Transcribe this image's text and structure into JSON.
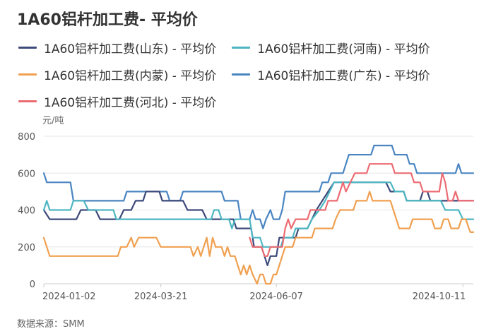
{
  "title": "1A60铝杆加工费- 平均价",
  "unit": "元/吨",
  "source": "数据来源：SMM",
  "chart_data": {
    "type": "line",
    "title": "1A60铝杆加工费- 平均价",
    "ylabel": "元/吨",
    "ylim": [
      0,
      800
    ],
    "yticks": [
      0,
      200,
      400,
      600,
      800
    ],
    "x_tick_labels": [
      "2024-01-02",
      "2024-03-21",
      "2024-06-07",
      "2024-10-11"
    ],
    "x_range": [
      "2024-01-02",
      "2024-10-18"
    ],
    "grid": true,
    "legend_position": "top",
    "series": [
      {
        "name": "1A60铝杆加工费(山东) - 平均价",
        "color": "#3d4a7a",
        "points": [
          [
            "2024-01-02",
            400
          ],
          [
            "2024-01-06",
            350
          ],
          [
            "2024-01-24",
            350
          ],
          [
            "2024-01-27",
            400
          ],
          [
            "2024-02-06",
            400
          ],
          [
            "2024-02-09",
            350
          ],
          [
            "2024-02-22",
            350
          ],
          [
            "2024-02-25",
            400
          ],
          [
            "2024-03-01",
            400
          ],
          [
            "2024-03-04",
            450
          ],
          [
            "2024-03-09",
            450
          ],
          [
            "2024-03-11",
            500
          ],
          [
            "2024-03-20",
            500
          ],
          [
            "2024-03-22",
            450
          ],
          [
            "2024-04-05",
            450
          ],
          [
            "2024-04-08",
            400
          ],
          [
            "2024-04-18",
            400
          ],
          [
            "2024-04-21",
            350
          ],
          [
            "2024-05-09",
            350
          ],
          [
            "2024-05-11",
            300
          ],
          [
            "2024-05-21",
            300
          ],
          [
            "2024-05-23",
            200
          ],
          [
            "2024-05-28",
            200
          ],
          [
            "2024-05-30",
            150
          ],
          [
            "2024-06-01",
            100
          ],
          [
            "2024-06-03",
            150
          ],
          [
            "2024-06-07",
            150
          ],
          [
            "2024-06-09",
            250
          ],
          [
            "2024-06-20",
            250
          ],
          [
            "2024-06-22",
            300
          ],
          [
            "2024-06-28",
            300
          ],
          [
            "2024-07-01",
            350
          ],
          [
            "2024-07-04",
            400
          ],
          [
            "2024-07-08",
            450
          ],
          [
            "2024-07-12",
            500
          ],
          [
            "2024-07-16",
            550
          ],
          [
            "2024-08-20",
            550
          ],
          [
            "2024-08-23",
            500
          ],
          [
            "2024-09-01",
            500
          ],
          [
            "2024-09-03",
            450
          ],
          [
            "2024-09-12",
            450
          ],
          [
            "2024-09-14",
            500
          ],
          [
            "2024-09-17",
            500
          ],
          [
            "2024-09-19",
            450
          ],
          [
            "2024-10-01",
            450
          ],
          [
            "2024-10-03",
            450
          ],
          [
            "2024-10-18",
            450
          ]
        ]
      },
      {
        "name": "1A60铝杆加工费(河南) - 平均价",
        "color": "#4db6c2",
        "points": [
          [
            "2024-01-02",
            400
          ],
          [
            "2024-01-04",
            450
          ],
          [
            "2024-01-06",
            400
          ],
          [
            "2024-01-20",
            400
          ],
          [
            "2024-01-22",
            450
          ],
          [
            "2024-01-29",
            450
          ],
          [
            "2024-02-01",
            400
          ],
          [
            "2024-02-18",
            400
          ],
          [
            "2024-02-20",
            350
          ],
          [
            "2024-04-24",
            350
          ],
          [
            "2024-04-26",
            400
          ],
          [
            "2024-04-29",
            400
          ],
          [
            "2024-05-01",
            350
          ],
          [
            "2024-05-06",
            350
          ],
          [
            "2024-05-08",
            300
          ],
          [
            "2024-05-10",
            350
          ],
          [
            "2024-05-20",
            350
          ],
          [
            "2024-05-22",
            250
          ],
          [
            "2024-05-27",
            250
          ],
          [
            "2024-05-29",
            200
          ],
          [
            "2024-06-03",
            200
          ],
          [
            "2024-06-05",
            200
          ],
          [
            "2024-06-10",
            200
          ],
          [
            "2024-06-12",
            250
          ],
          [
            "2024-06-18",
            250
          ],
          [
            "2024-06-20",
            300
          ],
          [
            "2024-06-28",
            300
          ],
          [
            "2024-07-01",
            350
          ],
          [
            "2024-07-06",
            400
          ],
          [
            "2024-07-10",
            450
          ],
          [
            "2024-07-16",
            550
          ],
          [
            "2024-08-23",
            550
          ],
          [
            "2024-08-26",
            500
          ],
          [
            "2024-09-01",
            500
          ],
          [
            "2024-09-03",
            450
          ],
          [
            "2024-09-26",
            450
          ],
          [
            "2024-09-29",
            400
          ],
          [
            "2024-10-08",
            400
          ],
          [
            "2024-10-11",
            350
          ],
          [
            "2024-10-18",
            350
          ]
        ]
      },
      {
        "name": "1A60铝杆加工费(内蒙) - 平均价",
        "color": "#f0a050",
        "points": [
          [
            "2024-01-02",
            250
          ],
          [
            "2024-01-04",
            200
          ],
          [
            "2024-01-06",
            150
          ],
          [
            "2024-02-21",
            150
          ],
          [
            "2024-02-23",
            200
          ],
          [
            "2024-02-27",
            200
          ],
          [
            "2024-03-01",
            250
          ],
          [
            "2024-03-03",
            200
          ],
          [
            "2024-03-06",
            250
          ],
          [
            "2024-03-18",
            250
          ],
          [
            "2024-03-21",
            200
          ],
          [
            "2024-04-10",
            200
          ],
          [
            "2024-04-12",
            150
          ],
          [
            "2024-04-15",
            200
          ],
          [
            "2024-04-17",
            150
          ],
          [
            "2024-04-19",
            200
          ],
          [
            "2024-04-21",
            250
          ],
          [
            "2024-04-23",
            150
          ],
          [
            "2024-04-25",
            250
          ],
          [
            "2024-04-27",
            200
          ],
          [
            "2024-05-01",
            200
          ],
          [
            "2024-05-03",
            150
          ],
          [
            "2024-05-05",
            200
          ],
          [
            "2024-05-07",
            150
          ],
          [
            "2024-05-10",
            150
          ],
          [
            "2024-05-12",
            100
          ],
          [
            "2024-05-14",
            50
          ],
          [
            "2024-05-16",
            100
          ],
          [
            "2024-05-18",
            50
          ],
          [
            "2024-05-20",
            100
          ],
          [
            "2024-05-22",
            50
          ],
          [
            "2024-05-25",
            0
          ],
          [
            "2024-05-27",
            50
          ],
          [
            "2024-05-29",
            50
          ],
          [
            "2024-05-31",
            0
          ],
          [
            "2024-06-03",
            0
          ],
          [
            "2024-06-05",
            50
          ],
          [
            "2024-06-07",
            50
          ],
          [
            "2024-06-09",
            100
          ],
          [
            "2024-06-11",
            150
          ],
          [
            "2024-06-13",
            200
          ],
          [
            "2024-06-18",
            200
          ],
          [
            "2024-06-20",
            250
          ],
          [
            "2024-07-01",
            250
          ],
          [
            "2024-07-03",
            300
          ],
          [
            "2024-07-15",
            300
          ],
          [
            "2024-07-17",
            350
          ],
          [
            "2024-07-20",
            400
          ],
          [
            "2024-07-29",
            400
          ],
          [
            "2024-07-31",
            450
          ],
          [
            "2024-08-07",
            450
          ],
          [
            "2024-08-09",
            500
          ],
          [
            "2024-08-11",
            450
          ],
          [
            "2024-08-23",
            450
          ],
          [
            "2024-08-25",
            400
          ],
          [
            "2024-08-27",
            350
          ],
          [
            "2024-08-29",
            300
          ],
          [
            "2024-09-05",
            300
          ],
          [
            "2024-09-07",
            350
          ],
          [
            "2024-09-20",
            350
          ],
          [
            "2024-09-22",
            300
          ],
          [
            "2024-09-26",
            300
          ],
          [
            "2024-09-28",
            350
          ],
          [
            "2024-10-01",
            350
          ],
          [
            "2024-10-03",
            300
          ],
          [
            "2024-10-08",
            300
          ],
          [
            "2024-10-10",
            350
          ],
          [
            "2024-10-13",
            350
          ],
          [
            "2024-10-15",
            300
          ],
          [
            "2024-10-16",
            280
          ],
          [
            "2024-10-18",
            280
          ]
        ]
      },
      {
        "name": "1A60铝杆加工费(广东) - 平均价",
        "color": "#4a85c2",
        "points": [
          [
            "2024-01-02",
            600
          ],
          [
            "2024-01-04",
            550
          ],
          [
            "2024-01-20",
            550
          ],
          [
            "2024-01-22",
            450
          ],
          [
            "2024-02-25",
            450
          ],
          [
            "2024-02-27",
            500
          ],
          [
            "2024-03-25",
            500
          ],
          [
            "2024-03-27",
            450
          ],
          [
            "2024-04-03",
            450
          ],
          [
            "2024-04-05",
            500
          ],
          [
            "2024-05-01",
            500
          ],
          [
            "2024-05-03",
            450
          ],
          [
            "2024-05-12",
            450
          ],
          [
            "2024-05-14",
            350
          ],
          [
            "2024-05-20",
            350
          ],
          [
            "2024-05-22",
            400
          ],
          [
            "2024-05-24",
            350
          ],
          [
            "2024-05-27",
            350
          ],
          [
            "2024-05-29",
            300
          ],
          [
            "2024-05-31",
            350
          ],
          [
            "2024-06-03",
            400
          ],
          [
            "2024-06-05",
            350
          ],
          [
            "2024-06-09",
            350
          ],
          [
            "2024-06-11",
            400
          ],
          [
            "2024-06-13",
            500
          ],
          [
            "2024-07-06",
            500
          ],
          [
            "2024-07-08",
            550
          ],
          [
            "2024-07-12",
            550
          ],
          [
            "2024-07-14",
            600
          ],
          [
            "2024-07-22",
            600
          ],
          [
            "2024-07-24",
            650
          ],
          [
            "2024-07-26",
            700
          ],
          [
            "2024-08-10",
            700
          ],
          [
            "2024-08-12",
            750
          ],
          [
            "2024-08-24",
            750
          ],
          [
            "2024-08-26",
            700
          ],
          [
            "2024-09-03",
            700
          ],
          [
            "2024-09-05",
            650
          ],
          [
            "2024-09-08",
            650
          ],
          [
            "2024-09-10",
            600
          ],
          [
            "2024-10-06",
            600
          ],
          [
            "2024-10-08",
            650
          ],
          [
            "2024-10-10",
            600
          ],
          [
            "2024-10-18",
            600
          ]
        ]
      },
      {
        "name": "1A60铝杆加工费(河北) - 平均价",
        "color": "#ec6a72",
        "points": [
          [
            "2024-05-20",
            250
          ],
          [
            "2024-05-22",
            200
          ],
          [
            "2024-05-28",
            200
          ],
          [
            "2024-05-30",
            150
          ],
          [
            "2024-06-01",
            150
          ],
          [
            "2024-06-03",
            200
          ],
          [
            "2024-06-11",
            200
          ],
          [
            "2024-06-13",
            300
          ],
          [
            "2024-06-15",
            350
          ],
          [
            "2024-06-17",
            300
          ],
          [
            "2024-06-20",
            350
          ],
          [
            "2024-06-28",
            350
          ],
          [
            "2024-06-30",
            400
          ],
          [
            "2024-07-10",
            400
          ],
          [
            "2024-07-12",
            450
          ],
          [
            "2024-07-18",
            450
          ],
          [
            "2024-07-20",
            500
          ],
          [
            "2024-07-22",
            550
          ],
          [
            "2024-07-24",
            500
          ],
          [
            "2024-07-27",
            550
          ],
          [
            "2024-07-30",
            600
          ],
          [
            "2024-08-07",
            600
          ],
          [
            "2024-08-09",
            650
          ],
          [
            "2024-08-24",
            650
          ],
          [
            "2024-08-26",
            600
          ],
          [
            "2024-09-06",
            600
          ],
          [
            "2024-09-08",
            550
          ],
          [
            "2024-09-12",
            550
          ],
          [
            "2024-09-14",
            500
          ],
          [
            "2024-09-25",
            500
          ],
          [
            "2024-09-27",
            600
          ],
          [
            "2024-09-29",
            550
          ],
          [
            "2024-10-01",
            450
          ],
          [
            "2024-10-04",
            450
          ],
          [
            "2024-10-06",
            500
          ],
          [
            "2024-10-08",
            450
          ],
          [
            "2024-10-18",
            450
          ]
        ]
      }
    ]
  }
}
